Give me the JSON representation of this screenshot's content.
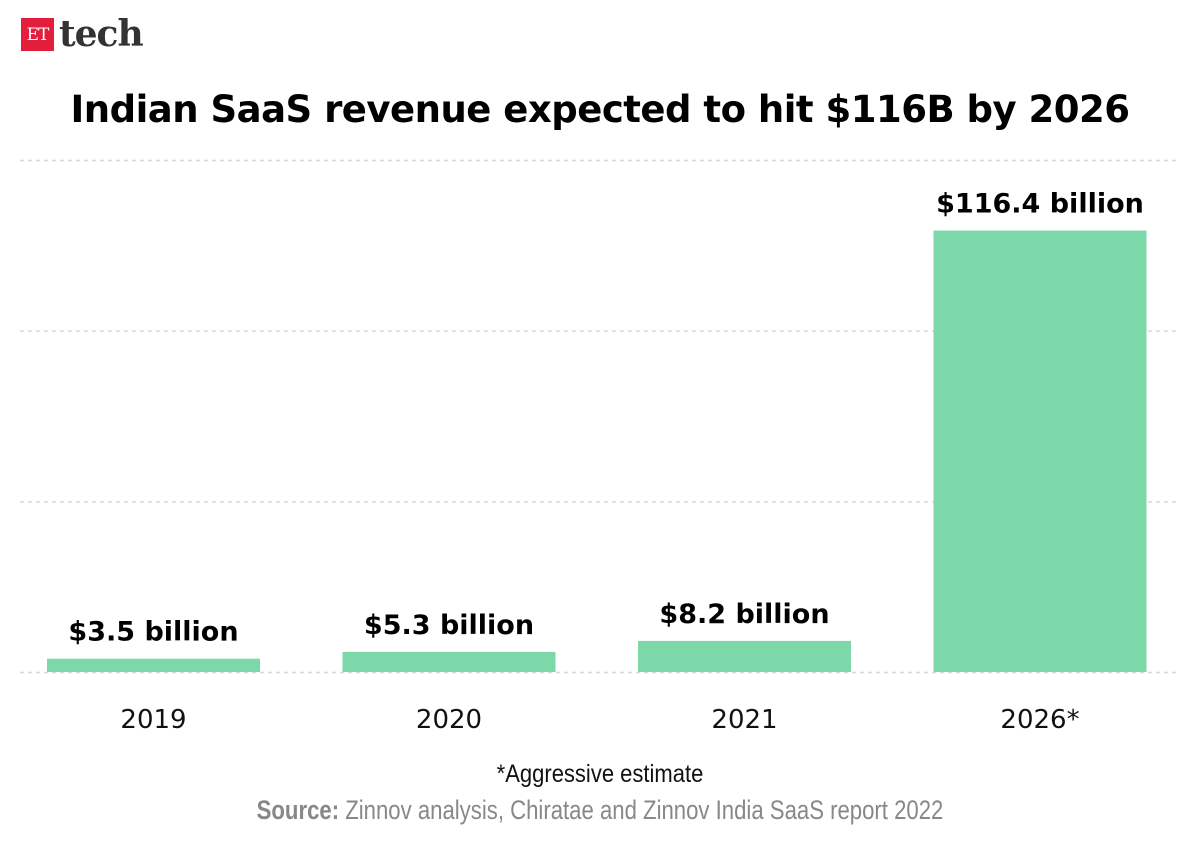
{
  "logo": {
    "badge": "ET",
    "text": "tech"
  },
  "chart_data": {
    "type": "bar",
    "title": "Indian SaaS revenue expected to hit $116B by 2026",
    "categories": [
      "2019",
      "2020",
      "2021",
      "2026*"
    ],
    "values": [
      3.5,
      5.3,
      8.2,
      116.4
    ],
    "data_labels": [
      "$3.5 billion",
      "$5.3 billion",
      "$8.2 billion",
      "$116.4 billion"
    ],
    "unit": "billion USD",
    "ylim": [
      0,
      135
    ],
    "gridlines": [
      0,
      45,
      90,
      135
    ],
    "grid": true,
    "bar_color": "#7dd8a9",
    "xlabel": "",
    "ylabel": ""
  },
  "footnote": "*Aggressive estimate",
  "source": {
    "label": "Source:",
    "text": " Zinnov analysis, Chiratae and Zinnov India SaaS report 2022"
  }
}
